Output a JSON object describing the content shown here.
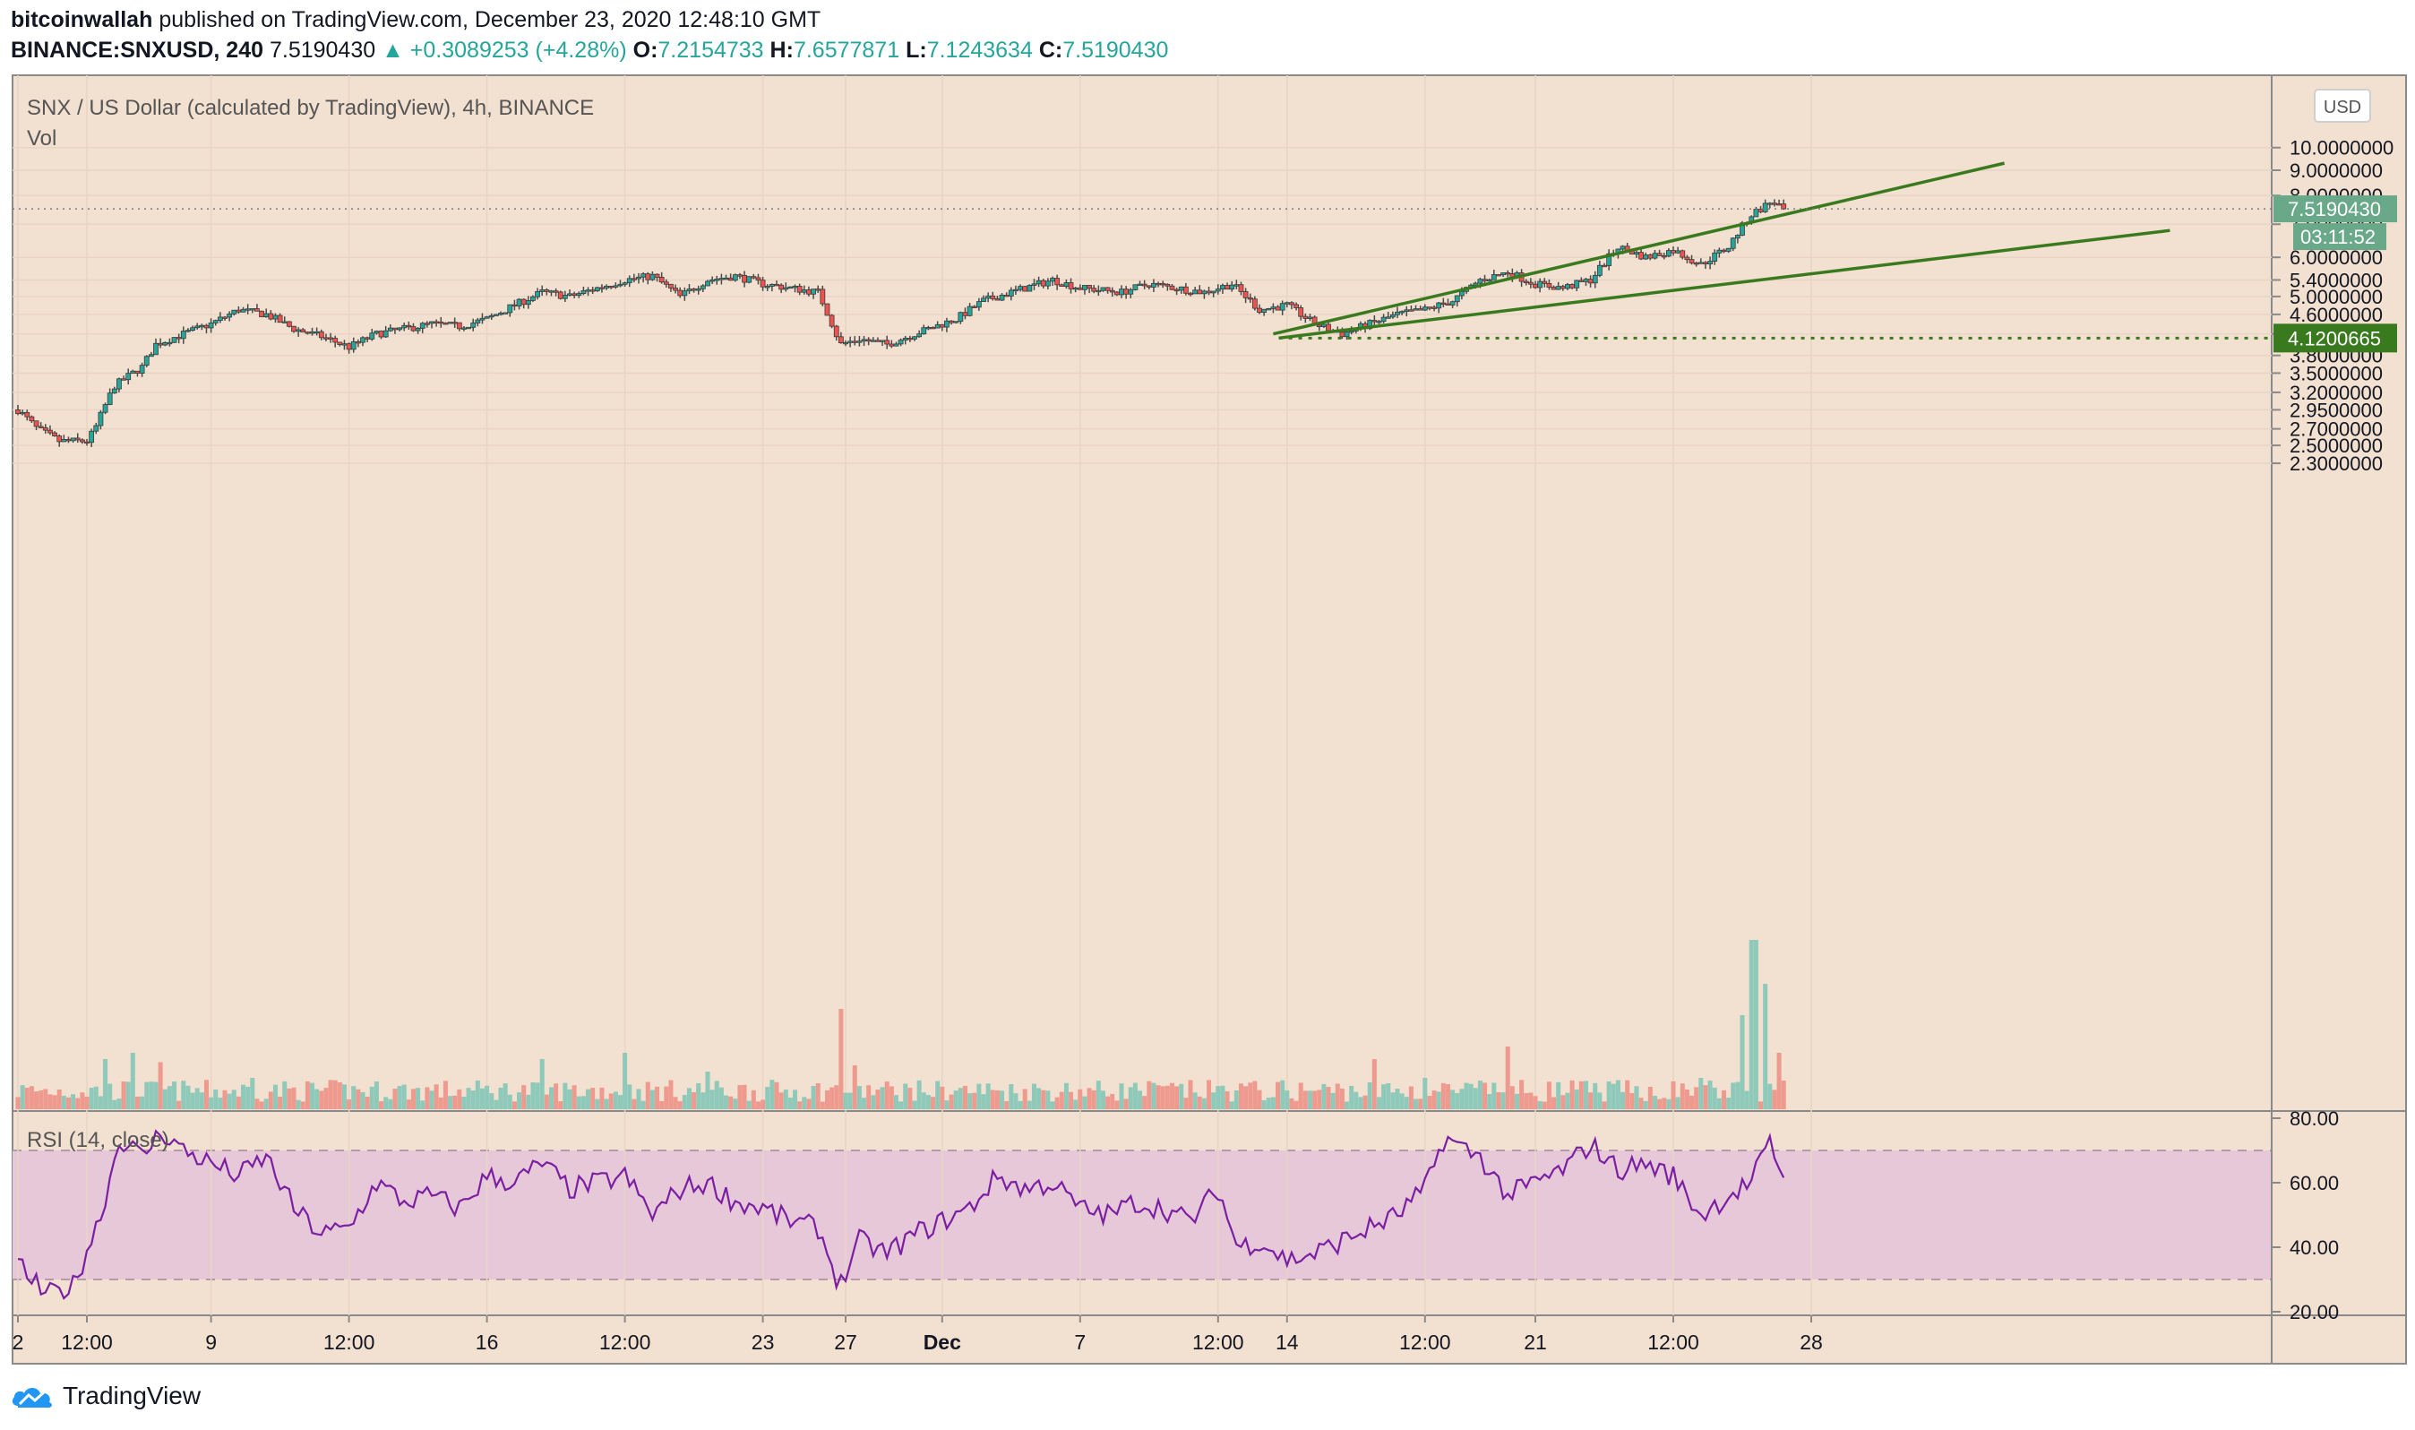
{
  "header": {
    "author": "bitcoinwallah",
    "published": "published on TradingView.com, December 23, 2020 12:48:10 GMT",
    "symbol": "BINANCE:SNXUSD, 240",
    "last": "7.5190430",
    "change": "▲ +0.3089253 (+4.28%)",
    "o_label": "O:",
    "o": "7.2154733",
    "h_label": "H:",
    "h": "7.6577871",
    "l_label": "L:",
    "l": "7.1243634",
    "c_label": "C:",
    "c": "7.5190430"
  },
  "footer": {
    "brand": "TradingView"
  },
  "colors": {
    "bg": "#f2e0d0",
    "up": "#26a69a",
    "down": "#ef5350",
    "wedge": "#3a7a1e",
    "rsi": "#7b1fa2",
    "rsi_band": "#e6c8d9"
  },
  "chart_data": {
    "type": "candlestick",
    "title": "SNX / US Dollar (calculated by TradingView), 4h, BINANCE",
    "volume_label": "Vol",
    "currency": "USD",
    "price_axis": [
      "10.0000000",
      "9.0000000",
      "8.0000000",
      "7.0000000",
      "6.0000000",
      "5.4000000",
      "5.0000000",
      "4.6000000",
      "4.2000000",
      "3.8000000",
      "3.5000000",
      "3.2000000",
      "2.9500000",
      "2.7000000",
      "2.5000000",
      "2.3000000"
    ],
    "price_ticks": [
      10.0,
      9.0,
      8.0,
      7.0,
      6.0,
      5.4,
      5.0,
      4.6,
      4.2,
      3.8,
      3.5,
      3.2,
      2.95,
      2.7,
      2.5,
      2.3
    ],
    "price_scale": "log",
    "last_price_label": "7.5190430",
    "countdown_label": "03:11:52",
    "support_level": 4.1200665,
    "support_label": "4.1200665",
    "time_axis": [
      "2",
      "12:00",
      "9",
      "12:00",
      "16",
      "12:00",
      "23",
      "27",
      "Dec",
      "7",
      "12:00",
      "14",
      "12:00",
      "21",
      "12:00",
      "28"
    ],
    "time_axis_days": [
      0,
      2.5,
      7,
      12,
      17,
      22,
      27,
      30,
      33.5,
      38.5,
      43.5,
      46,
      51,
      55,
      60,
      65
    ],
    "close_anchors": [
      {
        "day": 0,
        "close": 2.95
      },
      {
        "day": 0.7,
        "close": 2.7
      },
      {
        "day": 1.5,
        "close": 2.55
      },
      {
        "day": 2.5,
        "close": 2.55
      },
      {
        "day": 2.8,
        "close": 2.7
      },
      {
        "day": 3.5,
        "close": 3.3
      },
      {
        "day": 4.5,
        "close": 3.6
      },
      {
        "day": 5,
        "close": 4.0
      },
      {
        "day": 6,
        "close": 4.2
      },
      {
        "day": 7,
        "close": 4.4
      },
      {
        "day": 8,
        "close": 4.7
      },
      {
        "day": 9,
        "close": 4.6
      },
      {
        "day": 10,
        "close": 4.3
      },
      {
        "day": 11,
        "close": 4.15
      },
      {
        "day": 12,
        "close": 3.95
      },
      {
        "day": 13,
        "close": 4.2
      },
      {
        "day": 14,
        "close": 4.3
      },
      {
        "day": 15,
        "close": 4.4
      },
      {
        "day": 16,
        "close": 4.35
      },
      {
        "day": 17,
        "close": 4.5
      },
      {
        "day": 18,
        "close": 4.8
      },
      {
        "day": 19,
        "close": 5.1
      },
      {
        "day": 20,
        "close": 5.0
      },
      {
        "day": 21,
        "close": 5.2
      },
      {
        "day": 22,
        "close": 5.4
      },
      {
        "day": 23,
        "close": 5.5
      },
      {
        "day": 24,
        "close": 5.0
      },
      {
        "day": 25,
        "close": 5.4
      },
      {
        "day": 26,
        "close": 5.5
      },
      {
        "day": 27,
        "close": 5.3
      },
      {
        "day": 28,
        "close": 5.2
      },
      {
        "day": 29,
        "close": 5.1
      },
      {
        "day": 29.8,
        "close": 4.0
      },
      {
        "day": 30.5,
        "close": 4.1
      },
      {
        "day": 31.5,
        "close": 4.0
      },
      {
        "day": 33,
        "close": 4.3
      },
      {
        "day": 34,
        "close": 4.5
      },
      {
        "day": 35,
        "close": 4.9
      },
      {
        "day": 36.5,
        "close": 5.2
      },
      {
        "day": 37.5,
        "close": 5.4
      },
      {
        "day": 38.5,
        "close": 5.2
      },
      {
        "day": 40,
        "close": 5.1
      },
      {
        "day": 41,
        "close": 5.3
      },
      {
        "day": 42,
        "close": 5.2
      },
      {
        "day": 43,
        "close": 5.1
      },
      {
        "day": 44,
        "close": 5.3
      },
      {
        "day": 45,
        "close": 4.7
      },
      {
        "day": 46,
        "close": 4.8
      },
      {
        "day": 47,
        "close": 4.4
      },
      {
        "day": 48,
        "close": 4.2
      },
      {
        "day": 49,
        "close": 4.4
      },
      {
        "day": 50,
        "close": 4.6
      },
      {
        "day": 51,
        "close": 4.7
      },
      {
        "day": 52,
        "close": 4.9
      },
      {
        "day": 53,
        "close": 5.4
      },
      {
        "day": 54,
        "close": 5.6
      },
      {
        "day": 55,
        "close": 5.3
      },
      {
        "day": 56,
        "close": 5.2
      },
      {
        "day": 57,
        "close": 5.4
      },
      {
        "day": 58,
        "close": 6.3
      },
      {
        "day": 59,
        "close": 6.0
      },
      {
        "day": 60,
        "close": 6.2
      },
      {
        "day": 61,
        "close": 5.8
      },
      {
        "day": 62,
        "close": 6.3
      },
      {
        "day": 62.8,
        "close": 7.3
      },
      {
        "day": 63.6,
        "close": 7.8
      },
      {
        "day": 64,
        "close": 7.52
      }
    ],
    "wedge_upper": [
      {
        "day": 45.5,
        "price": 4.2
      },
      {
        "day": 72,
        "price": 9.3
      }
    ],
    "wedge_lower": [
      {
        "day": 45.7,
        "price": 4.12
      },
      {
        "day": 78,
        "price": 6.8
      }
    ],
    "rsi": {
      "label": "RSI (14, close)",
      "axis": [
        "80.00",
        "60.00",
        "40.00",
        "20.00"
      ],
      "ticks": [
        80,
        60,
        40,
        20
      ],
      "band": [
        30,
        70
      ],
      "anchors": [
        {
          "day": 0,
          "value": 35
        },
        {
          "day": 1,
          "value": 25
        },
        {
          "day": 2,
          "value": 28
        },
        {
          "day": 3,
          "value": 50
        },
        {
          "day": 3.7,
          "value": 74
        },
        {
          "day": 4.5,
          "value": 68
        },
        {
          "day": 5.2,
          "value": 76
        },
        {
          "day": 6,
          "value": 70
        },
        {
          "day": 7,
          "value": 66
        },
        {
          "day": 8,
          "value": 62
        },
        {
          "day": 9,
          "value": 68
        },
        {
          "day": 10,
          "value": 52
        },
        {
          "day": 11,
          "value": 44
        },
        {
          "day": 12,
          "value": 46
        },
        {
          "day": 13,
          "value": 60
        },
        {
          "day": 14,
          "value": 54
        },
        {
          "day": 15,
          "value": 56
        },
        {
          "day": 16,
          "value": 52
        },
        {
          "day": 17,
          "value": 62
        },
        {
          "day": 18,
          "value": 60
        },
        {
          "day": 19,
          "value": 66
        },
        {
          "day": 20,
          "value": 58
        },
        {
          "day": 21,
          "value": 60
        },
        {
          "day": 22,
          "value": 62
        },
        {
          "day": 23,
          "value": 50
        },
        {
          "day": 24,
          "value": 58
        },
        {
          "day": 25,
          "value": 60
        },
        {
          "day": 26,
          "value": 54
        },
        {
          "day": 27,
          "value": 52
        },
        {
          "day": 28,
          "value": 48
        },
        {
          "day": 29,
          "value": 46
        },
        {
          "day": 29.8,
          "value": 28
        },
        {
          "day": 30.5,
          "value": 42
        },
        {
          "day": 31.5,
          "value": 38
        },
        {
          "day": 32.5,
          "value": 44
        },
        {
          "day": 33.5,
          "value": 48
        },
        {
          "day": 34.5,
          "value": 52
        },
        {
          "day": 35.5,
          "value": 62
        },
        {
          "day": 36.5,
          "value": 58
        },
        {
          "day": 37.5,
          "value": 60
        },
        {
          "day": 38.5,
          "value": 52
        },
        {
          "day": 39.5,
          "value": 50
        },
        {
          "day": 40.5,
          "value": 54
        },
        {
          "day": 41.5,
          "value": 52
        },
        {
          "day": 42.5,
          "value": 48
        },
        {
          "day": 43.5,
          "value": 58
        },
        {
          "day": 44.2,
          "value": 40
        },
        {
          "day": 45,
          "value": 42
        },
        {
          "day": 46,
          "value": 36
        },
        {
          "day": 47,
          "value": 38
        },
        {
          "day": 48,
          "value": 42
        },
        {
          "day": 49,
          "value": 46
        },
        {
          "day": 50,
          "value": 50
        },
        {
          "day": 51,
          "value": 58
        },
        {
          "day": 51.7,
          "value": 74
        },
        {
          "day": 52.5,
          "value": 70
        },
        {
          "day": 53,
          "value": 68
        },
        {
          "day": 54,
          "value": 56
        },
        {
          "day": 55,
          "value": 60
        },
        {
          "day": 56,
          "value": 64
        },
        {
          "day": 57,
          "value": 72
        },
        {
          "day": 58,
          "value": 64
        },
        {
          "day": 59,
          "value": 66
        },
        {
          "day": 60,
          "value": 62
        },
        {
          "day": 61,
          "value": 50
        },
        {
          "day": 62,
          "value": 56
        },
        {
          "day": 62.8,
          "value": 60
        },
        {
          "day": 63.5,
          "value": 72
        },
        {
          "day": 64,
          "value": 62
        }
      ]
    },
    "volume_spikes": [
      {
        "day": 3.2,
        "value": 0.8
      },
      {
        "day": 4.2,
        "value": 0.9
      },
      {
        "day": 5.2,
        "value": 0.75
      },
      {
        "day": 8.5,
        "value": 0.5
      },
      {
        "day": 19,
        "value": 0.8
      },
      {
        "day": 22,
        "value": 0.9
      },
      {
        "day": 25,
        "value": 0.6
      },
      {
        "day": 29.9,
        "value": 1.6
      },
      {
        "day": 30.4,
        "value": 0.7
      },
      {
        "day": 36,
        "value": 0.4
      },
      {
        "day": 49.2,
        "value": 0.8
      },
      {
        "day": 51,
        "value": 0.5
      },
      {
        "day": 54,
        "value": 1.0
      },
      {
        "day": 61,
        "value": 0.5
      },
      {
        "day": 62.5,
        "value": 1.5
      },
      {
        "day": 62.9,
        "value": 2.7
      },
      {
        "day": 63.3,
        "value": 2.0
      },
      {
        "day": 63.8,
        "value": 0.9
      }
    ]
  }
}
